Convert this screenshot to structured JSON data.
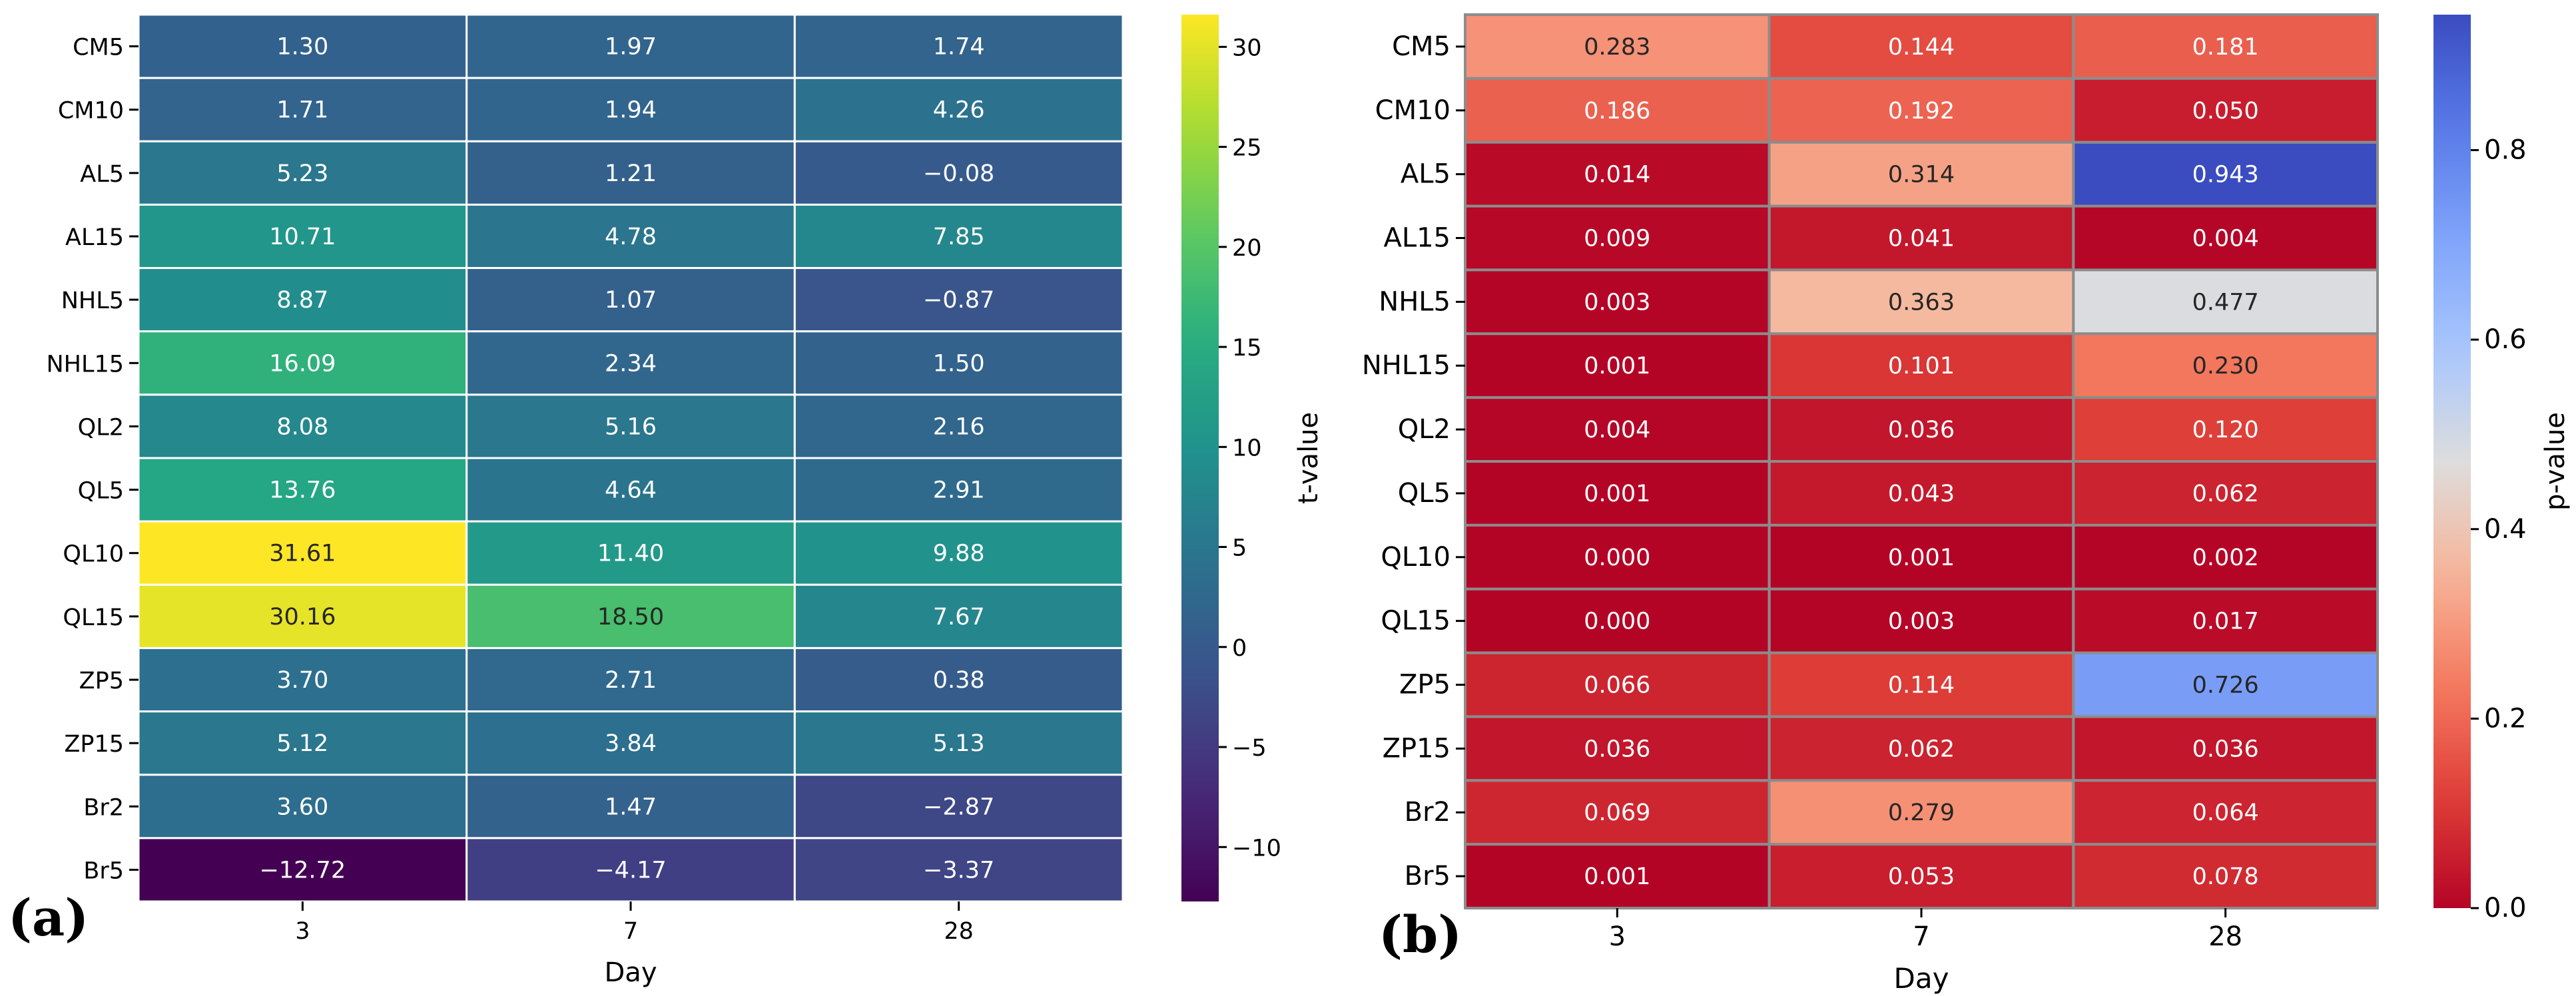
{
  "chart_data": [
    {
      "type": "heatmap",
      "panel_label": "(a)",
      "rows": [
        "CM5",
        "CM10",
        "AL5",
        "AL15",
        "NHL5",
        "NHL15",
        "QL2",
        "QL5",
        "QL10",
        "QL15",
        "ZP5",
        "ZP15",
        "Br2",
        "Br5"
      ],
      "columns": [
        "3",
        "7",
        "28"
      ],
      "xlabel": "Day",
      "colorbar_label": "t-value",
      "colorbar_ticks": [
        -10,
        -5,
        0,
        5,
        10,
        15,
        20,
        25,
        30
      ],
      "colormap": "viridis",
      "vmin": -12.72,
      "vmax": 31.61,
      "values": [
        [
          1.3,
          1.97,
          1.74
        ],
        [
          1.71,
          1.94,
          4.26
        ],
        [
          5.23,
          1.21,
          -0.08
        ],
        [
          10.71,
          4.78,
          7.85
        ],
        [
          8.87,
          1.07,
          -0.87
        ],
        [
          16.09,
          2.34,
          1.5
        ],
        [
          8.08,
          5.16,
          2.16
        ],
        [
          13.76,
          4.64,
          2.91
        ],
        [
          31.61,
          11.4,
          9.88
        ],
        [
          30.16,
          18.5,
          7.67
        ],
        [
          3.7,
          2.71,
          0.38
        ],
        [
          5.12,
          3.84,
          5.13
        ],
        [
          3.6,
          1.47,
          -2.87
        ],
        [
          -12.72,
          -4.17,
          -3.37
        ]
      ],
      "labels": [
        [
          "1.30",
          "1.97",
          "1.74"
        ],
        [
          "1.71",
          "1.94",
          "4.26"
        ],
        [
          "5.23",
          "1.21",
          "−0.08"
        ],
        [
          "10.71",
          "4.78",
          "7.85"
        ],
        [
          "8.87",
          "1.07",
          "−0.87"
        ],
        [
          "16.09",
          "2.34",
          "1.50"
        ],
        [
          "8.08",
          "5.16",
          "2.16"
        ],
        [
          "13.76",
          "4.64",
          "2.91"
        ],
        [
          "31.61",
          "11.40",
          "9.88"
        ],
        [
          "30.16",
          "18.50",
          "7.67"
        ],
        [
          "3.70",
          "2.71",
          "0.38"
        ],
        [
          "5.12",
          "3.84",
          "5.13"
        ],
        [
          "3.60",
          "1.47",
          "−2.87"
        ],
        [
          "−12.72",
          "−4.17",
          "−3.37"
        ]
      ]
    },
    {
      "type": "heatmap",
      "panel_label": "(b)",
      "rows": [
        "CM5",
        "CM10",
        "AL5",
        "AL15",
        "NHL5",
        "NHL15",
        "QL2",
        "QL5",
        "QL10",
        "QL15",
        "ZP5",
        "ZP15",
        "Br2",
        "Br5"
      ],
      "columns": [
        "3",
        "7",
        "28"
      ],
      "xlabel": "Day",
      "colorbar_label": "p-value",
      "colorbar_ticks": [
        0.0,
        0.2,
        0.4,
        0.6,
        0.8
      ],
      "colorbar_tick_labels": [
        "0.0",
        "0.2",
        "0.4",
        "0.6",
        "0.8"
      ],
      "colormap": "coolwarm_r",
      "vmin": 0.0,
      "vmax": 0.943,
      "values": [
        [
          0.283,
          0.144,
          0.181
        ],
        [
          0.186,
          0.192,
          0.05
        ],
        [
          0.014,
          0.314,
          0.943
        ],
        [
          0.009,
          0.041,
          0.004
        ],
        [
          0.003,
          0.363,
          0.477
        ],
        [
          0.001,
          0.101,
          0.23
        ],
        [
          0.004,
          0.036,
          0.12
        ],
        [
          0.001,
          0.043,
          0.062
        ],
        [
          0.0,
          0.001,
          0.002
        ],
        [
          0.0,
          0.003,
          0.017
        ],
        [
          0.066,
          0.114,
          0.726
        ],
        [
          0.036,
          0.062,
          0.036
        ],
        [
          0.069,
          0.279,
          0.064
        ],
        [
          0.001,
          0.053,
          0.078
        ]
      ],
      "labels": [
        [
          "0.283",
          "0.144",
          "0.181"
        ],
        [
          "0.186",
          "0.192",
          "0.050"
        ],
        [
          "0.014",
          "0.314",
          "0.943"
        ],
        [
          "0.009",
          "0.041",
          "0.004"
        ],
        [
          "0.003",
          "0.363",
          "0.477"
        ],
        [
          "0.001",
          "0.101",
          "0.230"
        ],
        [
          "0.004",
          "0.036",
          "0.120"
        ],
        [
          "0.001",
          "0.043",
          "0.062"
        ],
        [
          "0.000",
          "0.001",
          "0.002"
        ],
        [
          "0.000",
          "0.003",
          "0.017"
        ],
        [
          "0.066",
          "0.114",
          "0.726"
        ],
        [
          "0.036",
          "0.062",
          "0.036"
        ],
        [
          "0.069",
          "0.279",
          "0.064"
        ],
        [
          "0.001",
          "0.053",
          "0.078"
        ]
      ]
    }
  ],
  "colors": {
    "grid_a": "#ffffff",
    "grid_b": "#8c8c8c"
  }
}
